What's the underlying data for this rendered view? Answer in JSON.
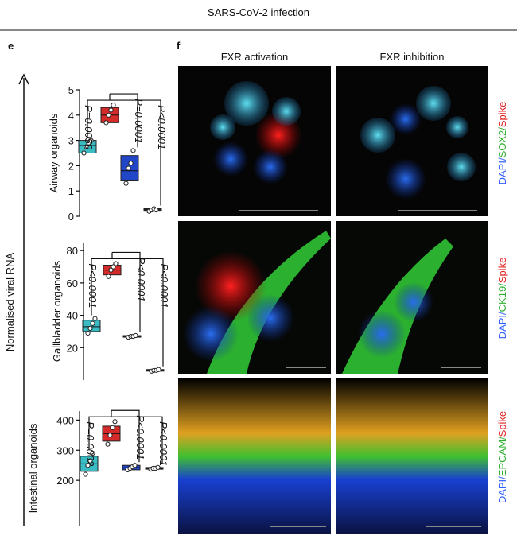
{
  "figure": {
    "header": "SARS-CoV-2 infection",
    "panel_e": "e",
    "panel_f": "f",
    "ylabel": "Normalised viral RNA",
    "columns": [
      "FXR activation",
      "FXR inhibition"
    ],
    "stains": [
      [
        "DAPI/",
        "SOX2/",
        "Spike"
      ],
      [
        "DAPI/",
        "CK19/",
        "Spike"
      ],
      [
        "DAPI/",
        "EPCAM/",
        "Spike"
      ]
    ]
  },
  "chart_data": [
    {
      "type": "box",
      "ylabel": "Airway organoids",
      "ylim": [
        0,
        5
      ],
      "yticks": [
        0,
        1,
        2,
        3,
        4,
        5
      ],
      "annotations": [
        "P=0.0050",
        "P=0.0001",
        "P<0.0001"
      ],
      "series": [
        {
          "color": "#3bbcc4",
          "q1": 2.5,
          "median": 2.8,
          "q3": 3.0,
          "values": [
            2.5,
            2.75,
            2.9,
            3.0
          ]
        },
        {
          "color": "#d42a2a",
          "q1": 3.7,
          "median": 4.0,
          "q3": 4.3,
          "values": [
            3.7,
            4.0,
            4.2,
            4.4
          ]
        },
        {
          "color": "#2146c8",
          "q1": 1.4,
          "median": 1.8,
          "q3": 2.4,
          "values": [
            1.3,
            1.9,
            2.1,
            2.6
          ]
        },
        {
          "color": "#333333",
          "q1": 0.2,
          "median": 0.25,
          "q3": 0.3,
          "values": [
            0.2,
            0.25,
            0.3,
            0.25
          ]
        }
      ]
    },
    {
      "type": "box",
      "ylabel": "Gallbladder organoids",
      "ylim": [
        0,
        85
      ],
      "yticks": [
        20,
        40,
        60,
        80
      ],
      "annotations": [
        "P<0.0001",
        "P<0.0001",
        "P<0.0001"
      ],
      "series": [
        {
          "color": "#3bbcc4",
          "q1": 30,
          "median": 33,
          "q3": 37,
          "values": [
            29,
            32,
            35,
            38
          ]
        },
        {
          "color": "#d42a2a",
          "q1": 65,
          "median": 68,
          "q3": 71,
          "values": [
            64,
            68,
            70,
            72
          ]
        },
        {
          "color": "#2146c8",
          "q1": 26.5,
          "median": 27,
          "q3": 27.5,
          "values": [
            26.5,
            27,
            27,
            27.5
          ]
        },
        {
          "color": "#333333",
          "q1": 5.5,
          "median": 6,
          "q3": 6.5,
          "values": [
            5.5,
            6,
            6,
            6.5
          ]
        }
      ]
    },
    {
      "type": "box",
      "ylabel": "Intestinal organoids",
      "ylim": [
        50,
        430
      ],
      "yticks": [
        200,
        300,
        400
      ],
      "annotations": [
        "P=0.0002",
        "P<0.0001",
        "P<0.0001"
      ],
      "series": [
        {
          "color": "#3bbcc4",
          "q1": 230,
          "median": 255,
          "q3": 280,
          "values": [
            220,
            250,
            265,
            290
          ]
        },
        {
          "color": "#d42a2a",
          "q1": 330,
          "median": 355,
          "q3": 380,
          "values": [
            320,
            350,
            375,
            395
          ]
        },
        {
          "color": "#2146c8",
          "q1": 235,
          "median": 242,
          "q3": 250,
          "values": [
            235,
            240,
            245,
            250
          ]
        },
        {
          "color": "#333333",
          "q1": 237,
          "median": 240,
          "q3": 243,
          "values": [
            237,
            240,
            240,
            243
          ]
        }
      ]
    }
  ]
}
